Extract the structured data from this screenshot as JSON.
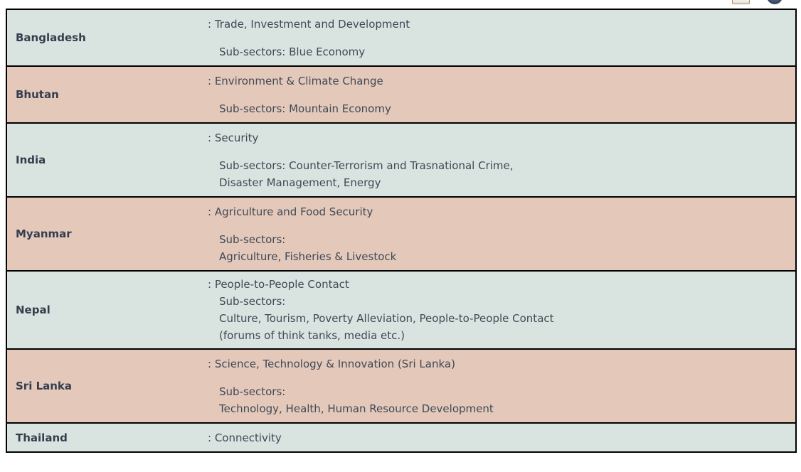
{
  "toolbar": {
    "icons": [
      {
        "name": "print-icon"
      },
      {
        "name": "globe-icon"
      }
    ]
  },
  "colors": {
    "row_light": "#d9e3df",
    "row_pink": "#e4c8ba",
    "border": "#000000",
    "body_text": "#3e4a57",
    "country_text": "#343e4e"
  },
  "table": {
    "rows": [
      {
        "country": "Bangladesh",
        "sector": ": Trade, Investment and Development",
        "subsectors": [
          "Sub-sectors: Blue Economy"
        ]
      },
      {
        "country": "Bhutan",
        "sector": ": Environment & Climate Change",
        "subsectors": [
          "Sub-sectors: Mountain Economy"
        ]
      },
      {
        "country": "India",
        "sector": ": Security",
        "subsectors": [
          "Sub-sectors: Counter-Terrorism and Trasnational Crime,",
          "Disaster Management, Energy"
        ]
      },
      {
        "country": "Myanmar",
        "sector": ": Agriculture and Food Security",
        "subsectors": [
          "Sub-sectors:",
          "Agriculture, Fisheries & Livestock"
        ]
      },
      {
        "country": "Nepal",
        "sector": ": People-to-People Contact",
        "subsectors": [
          "Sub-sectors:",
          "Culture, Tourism, Poverty Alleviation, People-to-People Contact",
          "(forums of think tanks, media etc.)"
        ]
      },
      {
        "country": "Sri Lanka",
        "sector": ": Science, Technology & Innovation (Sri Lanka)",
        "subsectors": [
          "Sub-sectors:",
          "Technology, Health, Human Resource Development"
        ]
      },
      {
        "country": "Thailand",
        "sector": ": Connectivity",
        "subsectors": []
      }
    ]
  }
}
